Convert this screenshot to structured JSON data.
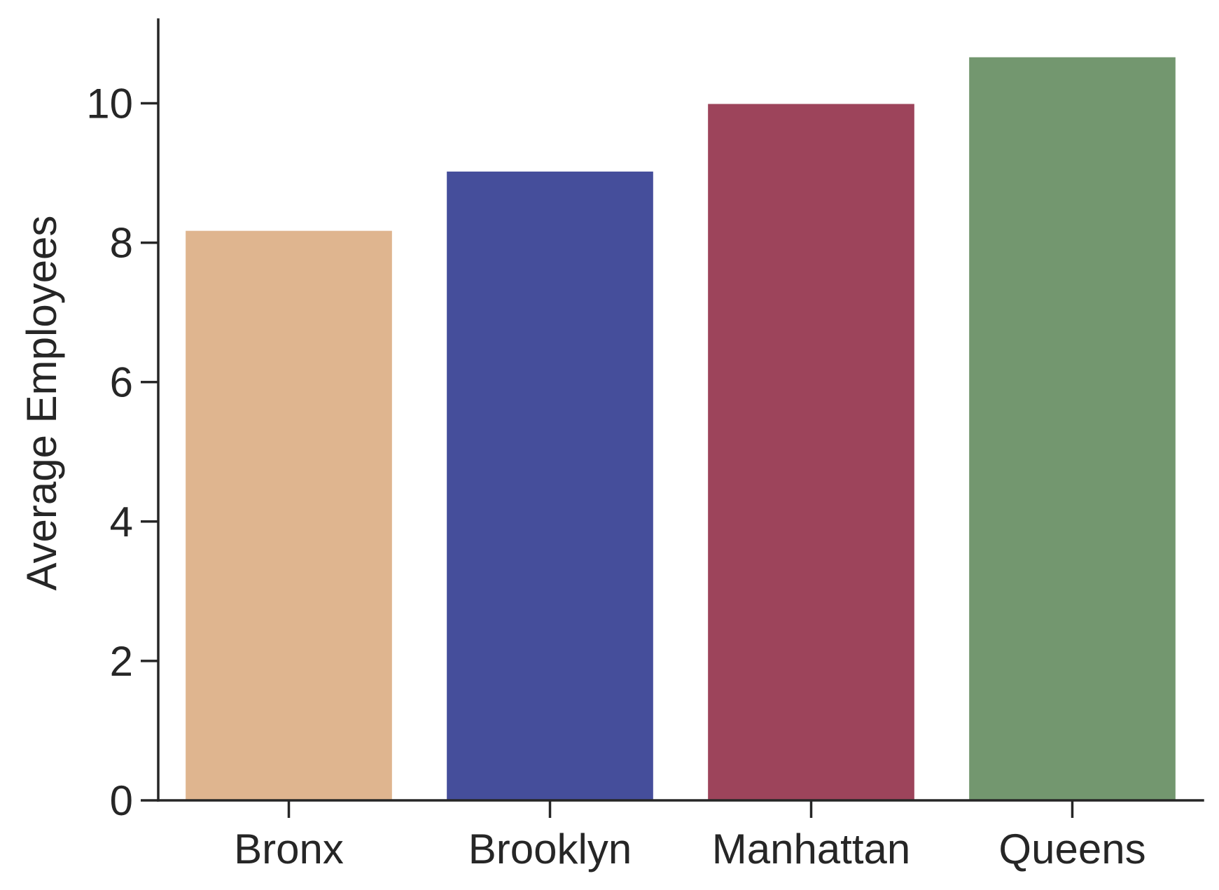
{
  "chart_data": {
    "type": "bar",
    "categories": [
      "Bronx",
      "Brooklyn",
      "Manhattan",
      "Queens"
    ],
    "values": [
      8.17,
      9.02,
      9.99,
      10.66
    ],
    "colors": [
      "#dfb58f",
      "#454e9b",
      "#9d445b",
      "#73976f"
    ],
    "title": "",
    "xlabel": "",
    "ylabel": "Average Employees",
    "ylim": [
      0,
      11.2
    ],
    "yticks": [
      0,
      2,
      4,
      6,
      8,
      10
    ],
    "grid": false,
    "legend": "none",
    "axis_color": "#262626"
  }
}
